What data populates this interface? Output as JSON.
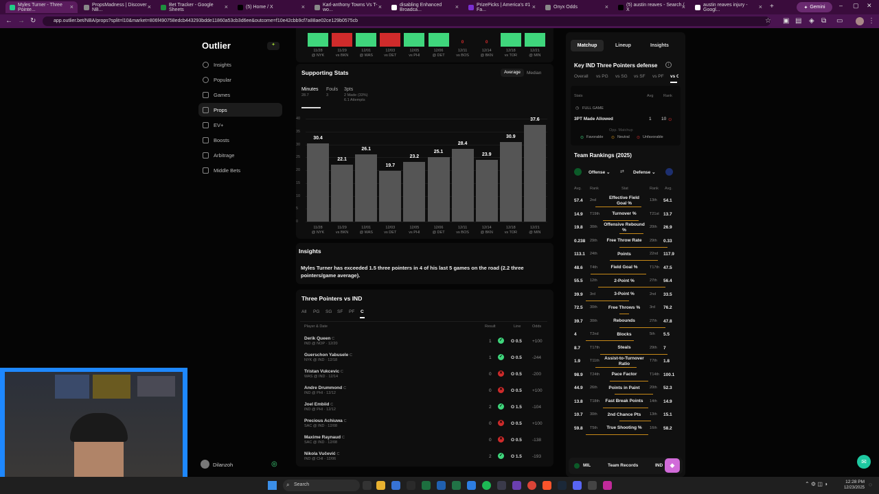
{
  "browser": {
    "tabs": [
      {
        "label": "Myles Turner - Three Pointe..."
      },
      {
        "label": "PropsMadness | Discover NB..."
      },
      {
        "label": "Bet Tracker - Google Sheets"
      },
      {
        "label": "(5) Home / X"
      },
      {
        "label": "Karl-anthony Towns Vs T-wo..."
      },
      {
        "label": "disabling Enhanced Broadca..."
      },
      {
        "label": "PrizePicks | America's #1 Fa..."
      },
      {
        "label": "Onyx Odds"
      },
      {
        "label": "(5) austin reaves - Search / X"
      },
      {
        "label": "austin reaves injury - Googl..."
      }
    ],
    "gemini_label": "Gemini",
    "url": "app.outlier.bet/NBA/props?split=l10&market=806f490758edcb443293bdde11860a53cb3d6ee&outcome=f10e42cbb9cf7a88ae02ce129b0575cb"
  },
  "sidebar": {
    "logo": "Outlier",
    "items": [
      {
        "label": "Insights"
      },
      {
        "label": "Popular"
      },
      {
        "label": "Games"
      },
      {
        "label": "Props"
      },
      {
        "label": "EV+"
      },
      {
        "label": "Boosts"
      },
      {
        "label": "Arbitrage"
      },
      {
        "label": "Middle Bets"
      }
    ],
    "user": "Dilanzoh"
  },
  "top_strip": {
    "dates": [
      "11/28",
      "11/29",
      "12/01",
      "12/03",
      "12/05",
      "12/06",
      "12/11",
      "12/14",
      "12/18",
      "12/21"
    ],
    "opps": [
      "@ NYK",
      "vs BKN",
      "@ WAS",
      "vs DET",
      "vs PHI",
      "@ DET",
      "vs BOS",
      "@ BKN",
      "vs TOR",
      "@ MIN"
    ],
    "zero_labels": [
      "0",
      "0"
    ]
  },
  "supporting": {
    "title": "Supporting Stats",
    "toggle": [
      "Average",
      "Median"
    ],
    "tabs": [
      {
        "label": "Minutes",
        "sub": "28.7"
      },
      {
        "label": "Fouls",
        "sub": "3"
      },
      {
        "label": "3pts",
        "sub": "2 Made (33%)",
        "sub2": "6.1 Attempts"
      }
    ]
  },
  "chart_data": {
    "type": "bar",
    "categories": [
      "11/28 @ NYK",
      "11/29 vs BKN",
      "12/01 @ WAS",
      "12/03 vs DET",
      "12/05 vs PHI",
      "12/06 @ DET",
      "12/11 vs BOS",
      "12/14 @ BKN",
      "12/18 vs TOR",
      "12/21 @ MIN"
    ],
    "values": [
      30.4,
      22.1,
      26.1,
      19.7,
      23.2,
      25.1,
      28.4,
      23.9,
      30.9,
      37.6
    ],
    "value_labels": [
      "30.4",
      "22.1",
      "26.1",
      "19.7",
      "23.2",
      "25.1",
      "28.4",
      "23.9",
      "30.9",
      "37.6"
    ],
    "dates": [
      "11/28",
      "11/29",
      "12/01",
      "12/03",
      "12/05",
      "12/06",
      "12/11",
      "12/14",
      "12/18",
      "12/21"
    ],
    "opps": [
      "@ NYK",
      "vs BKN",
      "@ WAS",
      "vs DET",
      "vs PHI",
      "@ DET",
      "vs BOS",
      "@ BKN",
      "vs TOR",
      "@ MIN"
    ],
    "yticks": [
      "40",
      "35",
      "30",
      "25",
      "20",
      "15",
      "10",
      "5",
      "0"
    ],
    "ylim": [
      0,
      40
    ],
    "grid": true
  },
  "insights": {
    "title": "Insights",
    "text": "Myles Turner has exceeded 1.5 three pointers in 4 of his last 5 games on the road (2.2 three pointers/game average)."
  },
  "threes": {
    "title": "Three Pointers vs IND",
    "filters": [
      "All",
      "PG",
      "SG",
      "SF",
      "PF",
      "C"
    ],
    "headers": {
      "player": "Player & Date",
      "result": "Result",
      "line": "Line",
      "odds": "Odds"
    },
    "rows": [
      {
        "name": "Derik Queen",
        "pos": "C",
        "sub": "IND @ NOP · 12/20",
        "result": "1",
        "hit": true,
        "line": "O 0.5",
        "odds": "+100"
      },
      {
        "name": "Guerschon Yabusele",
        "pos": "C",
        "sub": "NYK @ IND · 12/18",
        "result": "1",
        "hit": true,
        "line": "O 0.5",
        "odds": "-244"
      },
      {
        "name": "Tristan Vukcevic",
        "pos": "C",
        "sub": "WAS @ IND · 12/14",
        "result": "0",
        "hit": false,
        "line": "O 0.5",
        "odds": "-200"
      },
      {
        "name": "Andre Drummond",
        "pos": "C",
        "sub": "IND @ PHI · 12/12",
        "result": "0",
        "hit": false,
        "line": "O 0.5",
        "odds": "+100"
      },
      {
        "name": "Joel Embiid",
        "pos": "C",
        "sub": "IND @ PHI · 12/12",
        "result": "2",
        "hit": true,
        "line": "O 1.5",
        "odds": "-104"
      },
      {
        "name": "Precious Achiuwa",
        "pos": "C",
        "sub": "SAC @ IND · 12/08",
        "result": "0",
        "hit": false,
        "line": "O 0.5",
        "odds": "+100"
      },
      {
        "name": "Maxime Raynaud",
        "pos": "C",
        "sub": "SAC @ IND · 12/08",
        "result": "0",
        "hit": false,
        "line": "O 0.5",
        "odds": "-138"
      },
      {
        "name": "Nikola Vučević",
        "pos": "C",
        "sub": "IND @ CHI · 12/06",
        "result": "2",
        "hit": true,
        "line": "O 1.5",
        "odds": "-193"
      }
    ]
  },
  "right": {
    "tabs": [
      "Matchup",
      "Lineup",
      "Insights"
    ],
    "defense_title": "Key IND Three Pointers defense",
    "def_filters": [
      "Overall",
      "vs PG",
      "vs SG",
      "vs SF",
      "vs PF",
      "vs C"
    ],
    "cols": {
      "stats": "Stats",
      "avg": "Avg",
      "rank": "Rank"
    },
    "full_game": "FULL GAME",
    "stat_row": {
      "label": "3PT Made Allowed",
      "avg": "1",
      "rank": "10"
    },
    "opp_matchup": "Opp. Matchup",
    "legend": [
      "Favorable",
      "Neutral",
      "Unfavorable"
    ],
    "rankings_title": "Team Rankings (2025)",
    "offense": "Offense",
    "defense": "Defense",
    "rank_headers": [
      "Avg.",
      "Rank",
      "Stat",
      "Rank",
      "Avg."
    ],
    "rankings": [
      {
        "a1": "57.4",
        "r1": "2nd",
        "stat": "Effective Field Goal %",
        "r2": "13th",
        "a2": "54.1",
        "p1": 0.6,
        "p2": 0.35
      },
      {
        "a1": "14.9",
        "r1": "T19th",
        "stat": "Turnover %",
        "r2": "T21st",
        "a2": "13.7",
        "p1": 0.45,
        "p2": 0.3
      },
      {
        "a1": "19.8",
        "r1": "30th",
        "stat": "Offensive Rebound %",
        "r2": "20th",
        "a2": "26.9",
        "p1": 0.1,
        "p2": 0.4
      },
      {
        "a1": "0.238",
        "r1": "29th",
        "stat": "Free Throw Rate",
        "r2": "29th",
        "a2": "0.33",
        "p1": 0.1,
        "p2": 0.9
      },
      {
        "a1": "113.1",
        "r1": "24th",
        "stat": "Points",
        "r2": "22nd",
        "a2": "117.9",
        "p1": 0.3,
        "p2": 0.7
      },
      {
        "a1": "48.6",
        "r1": "T4th",
        "stat": "Field Goal %",
        "r2": "T17th",
        "a2": "47.5",
        "p1": 0.7,
        "p2": 0.45
      },
      {
        "a1": "55.5",
        "r1": "12th",
        "stat": "2-Point %",
        "r2": "27th",
        "a2": "56.4",
        "p1": 0.55,
        "p2": 0.85
      },
      {
        "a1": "39.9",
        "r1": "3rd",
        "stat": "3-Point %",
        "r2": "2nd",
        "a2": "33.5",
        "p1": 0.8,
        "p2": 0.1
      },
      {
        "a1": "72.5",
        "r1": "30th",
        "stat": "Free Throws %",
        "r2": "3rd",
        "a2": "76.2",
        "p1": 0.1,
        "p2": 0.1
      },
      {
        "a1": "39.7",
        "r1": "30th",
        "stat": "Rebounds",
        "r2": "27th",
        "a2": "47.8",
        "p1": 0.1,
        "p2": 0.85
      },
      {
        "a1": "4",
        "r1": "T2nd",
        "stat": "Blocks",
        "r2": "5th",
        "a2": "5.5",
        "p1": 0.8,
        "p2": 0.2
      },
      {
        "a1": "8.7",
        "r1": "T17th",
        "stat": "Steals",
        "r2": "29th",
        "a2": "7",
        "p1": 0.5,
        "p2": 0.9
      },
      {
        "a1": "1.9",
        "r1": "T11th",
        "stat": "Assist-to-Turnover Ratio",
        "r2": "T7th",
        "a2": "1.8",
        "p1": 0.6,
        "p2": 0.25
      },
      {
        "a1": "98.9",
        "r1": "T24th",
        "stat": "Pace Factor",
        "r2": "T14th",
        "a2": "100.1",
        "p1": 0.3,
        "p2": 0.5
      },
      {
        "a1": "44.9",
        "r1": "26th",
        "stat": "Points in Paint",
        "r2": "20th",
        "a2": "52.3",
        "p1": 0.2,
        "p2": 0.6
      },
      {
        "a1": "13.8",
        "r1": "T18th",
        "stat": "Fast Break Points",
        "r2": "14th",
        "a2": "14.9",
        "p1": 0.45,
        "p2": 0.5
      },
      {
        "a1": "10.7",
        "r1": "30th",
        "stat": "2nd Chance Pts",
        "r2": "13th",
        "a2": "15.1",
        "p1": 0.1,
        "p2": 0.55
      },
      {
        "a1": "59.8",
        "r1": "T5th",
        "stat": "True Shooting %",
        "r2": "16th",
        "a2": "58.2",
        "p1": 0.8,
        "p2": 0.5
      }
    ],
    "footer": {
      "left": "MIL",
      "mid": "Team Records",
      "right": "IND"
    }
  },
  "taskbar": {
    "search": "Search",
    "time": "12:28 PM",
    "date": "12/23/2025"
  },
  "colors": {
    "green": "#3fd67c",
    "red": "#d02b2b",
    "accent": "#c98a18"
  }
}
